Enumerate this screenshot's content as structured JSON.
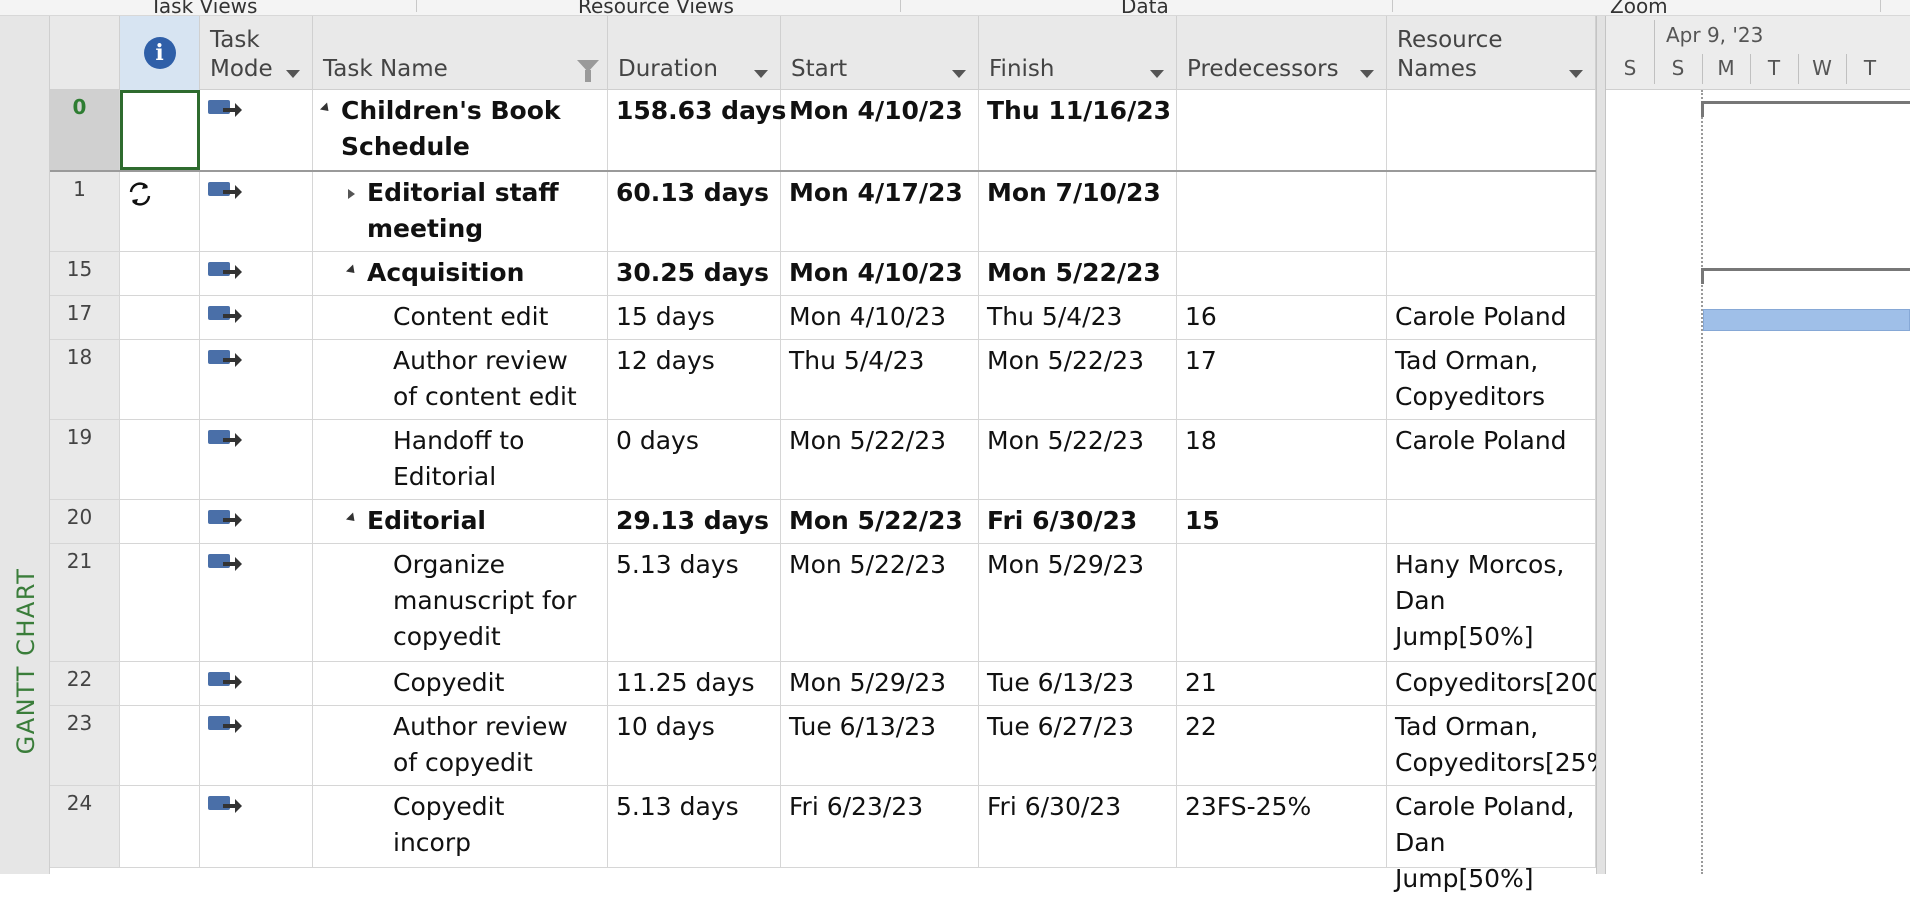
{
  "ribbon_groups": [
    {
      "label": "Task Views"
    },
    {
      "label": "Resource Views"
    },
    {
      "label": "Data"
    },
    {
      "label": "Zoom"
    }
  ],
  "view_bar": {
    "label": "GANTT CHART"
  },
  "columns": {
    "indicators_icon": "info-icon",
    "task_mode": "Task\nMode",
    "task_name": "Task Name",
    "duration": "Duration",
    "start": "Start",
    "finish": "Finish",
    "predecessors": "Predecessors",
    "resource_names": "Resource\nNames"
  },
  "rows": [
    {
      "id": "0",
      "indicator": "",
      "name": "Children's Book\nSchedule",
      "duration": "158.63 days",
      "start": "Mon 4/10/23",
      "finish": "Thu 11/16/23",
      "predecessors": "",
      "resources": "",
      "bold": true,
      "level": 0,
      "outline": "collapse"
    },
    {
      "id": "1",
      "indicator": "recurring-icon",
      "name": "Editorial staff\nmeeting",
      "duration": "60.13 days",
      "start": "Mon 4/17/23",
      "finish": "Mon 7/10/23",
      "predecessors": "",
      "resources": "",
      "bold": true,
      "level": 1,
      "outline": "expand"
    },
    {
      "id": "15",
      "indicator": "",
      "name": "Acquisition",
      "duration": "30.25 days",
      "start": "Mon 4/10/23",
      "finish": "Mon 5/22/23",
      "predecessors": "",
      "resources": "",
      "bold": true,
      "level": 1,
      "outline": "collapse"
    },
    {
      "id": "17",
      "indicator": "",
      "name": "Content edit",
      "duration": "15 days",
      "start": "Mon 4/10/23",
      "finish": "Thu 5/4/23",
      "predecessors": "16",
      "resources": "Carole Poland",
      "bold": false,
      "level": 2,
      "outline": ""
    },
    {
      "id": "18",
      "indicator": "",
      "name": "Author review\nof content edit",
      "duration": "12 days",
      "start": "Thu 5/4/23",
      "finish": "Mon 5/22/23",
      "predecessors": "17",
      "resources": "Tad Orman,\nCopyeditors",
      "bold": false,
      "level": 2,
      "outline": ""
    },
    {
      "id": "19",
      "indicator": "",
      "name": "Handoff to\nEditorial",
      "duration": "0 days",
      "start": "Mon 5/22/23",
      "finish": "Mon 5/22/23",
      "predecessors": "18",
      "resources": "Carole Poland",
      "bold": false,
      "level": 2,
      "outline": ""
    },
    {
      "id": "20",
      "indicator": "",
      "name": "Editorial",
      "duration": "29.13 days",
      "start": "Mon 5/22/23",
      "finish": "Fri 6/30/23",
      "predecessors": "15",
      "resources": "",
      "bold": true,
      "level": 1,
      "outline": "collapse"
    },
    {
      "id": "21",
      "indicator": "",
      "name": "Organize\nmanuscript for\ncopyedit",
      "duration": "5.13 days",
      "start": "Mon 5/22/23",
      "finish": "Mon 5/29/23",
      "predecessors": "",
      "resources": "Hany Morcos,\nDan Jump[50%]",
      "bold": false,
      "level": 2,
      "outline": ""
    },
    {
      "id": "22",
      "indicator": "",
      "name": "Copyedit",
      "duration": "11.25 days",
      "start": "Mon 5/29/23",
      "finish": "Tue 6/13/23",
      "predecessors": "21",
      "resources": "Copyeditors[200",
      "bold": false,
      "level": 2,
      "outline": ""
    },
    {
      "id": "23",
      "indicator": "",
      "name": "Author review\nof copyedit",
      "duration": "10 days",
      "start": "Tue 6/13/23",
      "finish": "Tue 6/27/23",
      "predecessors": "22",
      "resources": "Tad Orman,\nCopyeditors[25%",
      "bold": false,
      "level": 2,
      "outline": ""
    },
    {
      "id": "24",
      "indicator": "",
      "name": "Copyedit\nincorp",
      "duration": "5.13 days",
      "start": "Fri 6/23/23",
      "finish": "Fri 6/30/23",
      "predecessors": "23FS-25%",
      "resources": "Carole Poland,\nDan Jump[50%]",
      "bold": false,
      "level": 2,
      "outline": ""
    }
  ],
  "timescale": {
    "week_label": "Apr 9, '23",
    "days": [
      "S",
      "S",
      "M",
      "T",
      "W",
      "T"
    ]
  },
  "task_mode_icon": "auto-scheduled-icon",
  "colors": {
    "selection_border": "#2e6b2e",
    "view_label": "#3a7d3a",
    "task_bar": "#9fbfe8",
    "info_icon": "#2f5fa8"
  }
}
